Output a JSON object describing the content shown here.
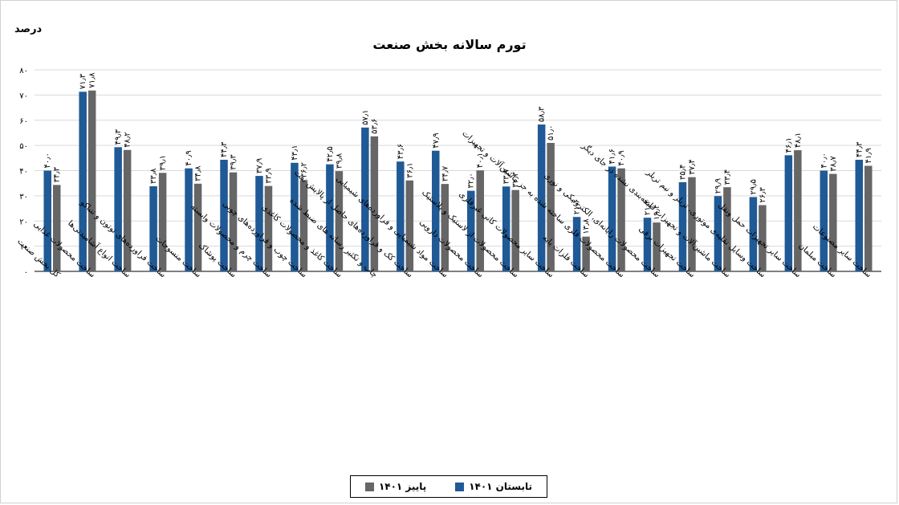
{
  "chart_data": {
    "type": "bar",
    "unit_label": "درصد",
    "title": "تورم سالانه بخش صنعت",
    "ylim": [
      0,
      80
    ],
    "yticks": [
      "۰",
      "۱۰",
      "۲۰",
      "۳۰",
      "۴۰",
      "۵۰",
      "۶۰",
      "۷۰",
      "۸۰"
    ],
    "grid": true,
    "legend_position": "bottom",
    "categories": [
      "کل بخش صنعت",
      "ساخت محصولات غذایی",
      "ساخت انواع آشامیدنی‌ها",
      "ساخت فراورده‌های توتون و تنباکو",
      "ساخت منسوجات",
      "ساخت پوشاک",
      "ساخت چرم و محصولات وابسته",
      "ساخت چوب و فراورده‌های چوبی",
      "ساخت کاغذ و محصولات کاغذی",
      "چاپ و تکثیر رسانه های ضبط شده",
      "ساخت کک و فراورده‌های حاصل از پالایش نفت",
      "ساخت مواد شیمیایی و فراورده‌های شیمیایی",
      "ساخت محصولات دارویی",
      "ساخت محصولات از لاستیک و پلاستیک",
      "ساخت سایر محصولات کانی غیرفلزی",
      "ساخت فلزات پایه",
      "ساخت محصولات فلزی ساخته شده به جز ماشین‌آلات و تجهیزات",
      "ساخت محصولات رایانه‌ای، الکترونیکی و نوری",
      "ساخت تجهیزات برقی",
      "ساخت ماشین‌آلات و تجهیزات طبقه‌بندی نشده در جای دیگر",
      "ساخت وسایل نقلیه‌ی موتوری، تریلر و نیم تریلر",
      "ساخت سایر تجهیزات حمل ونقل",
      "ساخت مبلمان",
      "ساخت سایر مصنوعات"
    ],
    "series": [
      {
        "name": "تابستان ۱۴۰۱",
        "color": "#1f5a96",
        "values": [
          40.0,
          71.3,
          49.3,
          33.8,
          40.9,
          44.3,
          37.9,
          43.1,
          42.5,
          57.1,
          43.6,
          47.9,
          32.0,
          33.7,
          58.3,
          21.6,
          41.6,
          21.3,
          35.4,
          29.9,
          29.5,
          46.1,
          40.0,
          44.3
        ],
        "labels": [
          "۴۰٫۰",
          "۷۱٫۳",
          "۴۹٫۳",
          "۳۳٫۸",
          "۴۰٫۹",
          "۴۴٫۳",
          "۳۷٫۹",
          "۴۳٫۱",
          "۴۲٫۵",
          "۵۷٫۱",
          "۴۳٫۶",
          "۴۷٫۹",
          "۳۲٫۰",
          "۳۳٫۷",
          "۵۸٫۳",
          "۲۱٫۶",
          "۴۱٫۶",
          "۲۱٫۳",
          "۳۵٫۴",
          "۲۹٫۹",
          "۲۹٫۵",
          "۴۶٫۱",
          "۴۰٫۰",
          "۴۴٫۳"
        ]
      },
      {
        "name": "پاییز ۱۴۰۱",
        "color": "#666666",
        "values": [
          34.3,
          71.8,
          48.2,
          39.1,
          34.8,
          39.3,
          33.9,
          36.2,
          39.8,
          53.6,
          36.1,
          34.7,
          40.1,
          32.3,
          51.0,
          13.8,
          40.9,
          19.4,
          37.4,
          33.4,
          26.3,
          48.1,
          38.7,
          41.9
        ],
        "labels": [
          "۳۴٫۳",
          "۷۱٫۸",
          "۴۸٫۲",
          "۳۹٫۱",
          "۳۴٫۸",
          "۳۹٫۳",
          "۳۳٫۹",
          "۳۶٫۲",
          "۳۹٫۸",
          "۵۳٫۶",
          "۳۶٫۱",
          "۳۴٫۷",
          "۴۰٫۱",
          "۳۲٫۳",
          "۵۱٫۰",
          "۱۳٫۸",
          "۴۰٫۹",
          "۱۹٫۴",
          "۳۷٫۴",
          "۳۳٫۴",
          "۲۶٫۳",
          "۴۸٫۱",
          "۳۸٫۷",
          "۴۱٫۹"
        ]
      }
    ]
  }
}
